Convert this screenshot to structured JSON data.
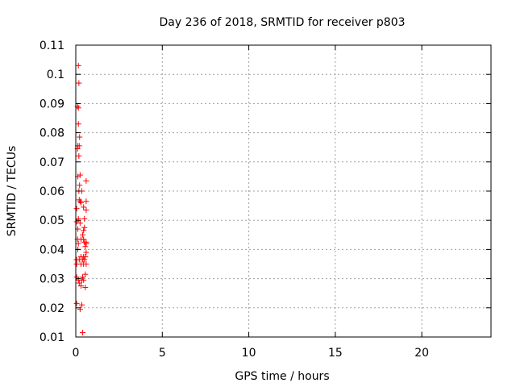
{
  "chart_data": {
    "type": "scatter",
    "title": "Day 236 of 2018, SRMTID for receiver p803",
    "xlabel": "GPS time / hours",
    "ylabel": "SRMTID / TECUs",
    "xlim": [
      0,
      24
    ],
    "ylim": [
      0.01,
      0.11
    ],
    "xticks": [
      0,
      5,
      10,
      15,
      20
    ],
    "xtick_labels": [
      "0",
      "5",
      "10",
      "15",
      "20"
    ],
    "yticks": [
      0.01,
      0.02,
      0.03,
      0.04,
      0.05,
      0.06,
      0.07,
      0.08,
      0.09,
      0.1,
      0.11
    ],
    "ytick_labels": [
      "0.01",
      "0.02",
      "0.03",
      "0.04",
      "0.05",
      "0.06",
      "0.07",
      "0.08",
      "0.09",
      "0.1",
      "0.11"
    ],
    "grid": true,
    "marker": "+",
    "marker_color": "#ff0000",
    "series": [
      {
        "points": [
          [
            0.15,
            0.103
          ],
          [
            0.18,
            0.097
          ],
          [
            0.1,
            0.089
          ],
          [
            0.15,
            0.0885
          ],
          [
            0.15,
            0.083
          ],
          [
            0.22,
            0.0785
          ],
          [
            0.12,
            0.0755
          ],
          [
            0.2,
            0.0755
          ],
          [
            0.1,
            0.0745
          ],
          [
            0.18,
            0.072
          ],
          [
            0.6,
            0.0635
          ],
          [
            0.12,
            0.065
          ],
          [
            0.25,
            0.0655
          ],
          [
            0.22,
            0.062
          ],
          [
            0.18,
            0.06
          ],
          [
            0.35,
            0.06
          ],
          [
            0.2,
            0.057
          ],
          [
            0.25,
            0.0565
          ],
          [
            0.3,
            0.056
          ],
          [
            0.6,
            0.0565
          ],
          [
            0.05,
            0.054
          ],
          [
            0.45,
            0.0545
          ],
          [
            0.6,
            0.0535
          ],
          [
            0.15,
            0.0505
          ],
          [
            0.5,
            0.0505
          ],
          [
            0.25,
            0.049
          ],
          [
            0.05,
            0.0495
          ],
          [
            0.12,
            0.047
          ],
          [
            0.5,
            0.0475
          ],
          [
            0.45,
            0.0465
          ],
          [
            0.4,
            0.045
          ],
          [
            0.1,
            0.0435
          ],
          [
            0.3,
            0.0435
          ],
          [
            0.45,
            0.0435
          ],
          [
            0.5,
            0.0425
          ],
          [
            0.6,
            0.0425
          ],
          [
            0.15,
            0.042
          ],
          [
            0.55,
            0.041
          ],
          [
            0.6,
            0.042
          ],
          [
            0.12,
            0.04
          ],
          [
            0.6,
            0.039
          ],
          [
            0.3,
            0.0375
          ],
          [
            0.45,
            0.0375
          ],
          [
            0.55,
            0.0375
          ],
          [
            0.05,
            0.0365
          ],
          [
            0.2,
            0.0365
          ],
          [
            0.4,
            0.0365
          ],
          [
            0.5,
            0.0365
          ],
          [
            0.05,
            0.035
          ],
          [
            0.3,
            0.035
          ],
          [
            0.45,
            0.035
          ],
          [
            0.6,
            0.035
          ],
          [
            0.55,
            0.0315
          ],
          [
            0.4,
            0.0305
          ],
          [
            0.05,
            0.0305
          ],
          [
            0.15,
            0.0295
          ],
          [
            0.35,
            0.0295
          ],
          [
            0.45,
            0.0295
          ],
          [
            0.2,
            0.0285
          ],
          [
            0.3,
            0.0275
          ],
          [
            0.55,
            0.027
          ],
          [
            0.05,
            0.0215
          ],
          [
            0.35,
            0.021
          ],
          [
            0.25,
            0.0195
          ],
          [
            0.4,
            0.0115
          ]
        ]
      }
    ]
  }
}
